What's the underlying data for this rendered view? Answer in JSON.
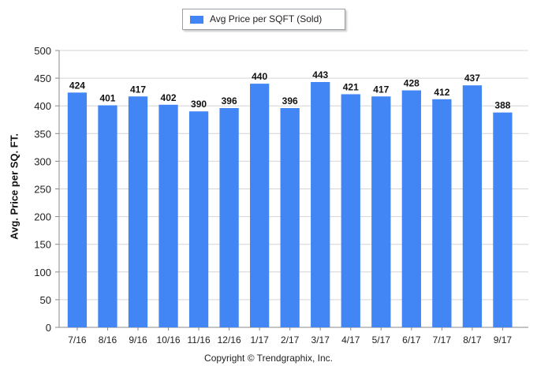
{
  "legend": {
    "label": "Avg Price per SQFT (Sold)",
    "color": "#4285f4"
  },
  "copyright": "Copyright © Trendgraphix, Inc.",
  "chart_data": {
    "type": "bar",
    "title": "",
    "xlabel": "",
    "ylabel": "Avg. Price per SQ. FT.",
    "ylim": [
      0,
      500
    ],
    "yticks": [
      0,
      50,
      100,
      150,
      200,
      250,
      300,
      350,
      400,
      450,
      500
    ],
    "grid": true,
    "legend_position": "top-center",
    "categories": [
      "7/16",
      "8/16",
      "9/16",
      "10/16",
      "11/16",
      "12/16",
      "1/17",
      "2/17",
      "3/17",
      "4/17",
      "5/17",
      "6/17",
      "7/17",
      "8/17",
      "9/17"
    ],
    "series": [
      {
        "name": "Avg Price per SQFT (Sold)",
        "color": "#4285f4",
        "values": [
          424,
          401,
          417,
          402,
          390,
          396,
          440,
          396,
          443,
          421,
          417,
          428,
          412,
          437,
          388
        ],
        "labels": [
          "424",
          "401",
          "417",
          "402",
          "390",
          "396",
          "440",
          "396",
          "443",
          "421",
          "417",
          "428",
          "412",
          "437",
          "388"
        ]
      }
    ]
  }
}
